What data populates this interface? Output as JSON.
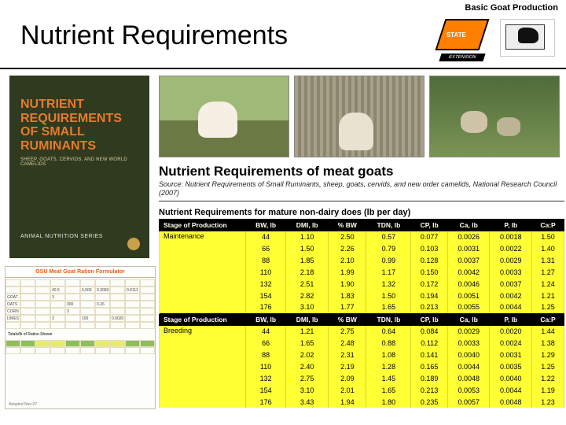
{
  "header": {
    "topic": "Basic Goat Production",
    "title": "Nutrient Requirements",
    "logo_state": "STATE",
    "logo_ext": "EXTENSION"
  },
  "book": {
    "line1": "NUTRIENT",
    "line2": "REQUIREMENTS",
    "line3": "OF SMALL",
    "line4": "RUMINANTS",
    "sub": "SHEEP, GOATS, CERVIDS, AND NEW WORLD CAMELIDS",
    "series": "ANIMAL NUTRITION SERIES"
  },
  "spreadsheet": {
    "title": "OSU Meat Goat Ration Formulator",
    "rows": [
      [
        "",
        "",
        "",
        "40.5",
        "",
        "6,000",
        "0.3093",
        "",
        "0.0111",
        ""
      ],
      [
        "GOAT PELLETS",
        "",
        "",
        "3",
        "",
        "",
        "",
        "",
        "",
        ""
      ],
      [
        "OATS GRAIN WILD",
        "",
        "",
        "",
        "300",
        "",
        "0.26",
        "",
        "",
        ""
      ],
      [
        "CORN",
        "",
        "",
        "",
        "3",
        "",
        "",
        "",
        "",
        ""
      ],
      [
        "LIMESTONE APL",
        "",
        "",
        "3",
        "",
        "100",
        "",
        "0.0020",
        "",
        ""
      ],
      [
        "",
        "",
        "",
        "",
        "",
        "",
        "",
        "",
        "",
        ""
      ]
    ],
    "summary_label": "Totals/lb of Ration Shown",
    "footer": "Adapted    Nov-07"
  },
  "table": {
    "title": "Nutrient Requirements of meat goats",
    "source": "Source:  Nutrient Requirements of Small Ruminants, sheep, goats, cervids, and new order camelids, National Research Council (2007)",
    "caption": "Nutrient Requirements for mature non-dairy does (lb per day)",
    "columns": [
      "Stage of Production",
      "BW, lb",
      "DMI, lb",
      "% BW",
      "TDN, lb",
      "CP, lb",
      "Ca, lb",
      "P, lb",
      "Ca:P"
    ],
    "sections": [
      {
        "stage": "Maintenance",
        "rows": [
          [
            "44",
            "1.10",
            "2.50",
            "0.57",
            "0.077",
            "0.0026",
            "0.0018",
            "1.50"
          ],
          [
            "66",
            "1.50",
            "2.26",
            "0.79",
            "0.103",
            "0.0031",
            "0.0022",
            "1.40"
          ],
          [
            "88",
            "1.85",
            "2.10",
            "0.99",
            "0.128",
            "0.0037",
            "0.0029",
            "1.31"
          ],
          [
            "110",
            "2.18",
            "1.99",
            "1.17",
            "0.150",
            "0.0042",
            "0.0033",
            "1.27"
          ],
          [
            "132",
            "2.51",
            "1.90",
            "1.32",
            "0.172",
            "0.0046",
            "0.0037",
            "1.24"
          ],
          [
            "154",
            "2.82",
            "1.83",
            "1.50",
            "0.194",
            "0.0051",
            "0.0042",
            "1.21"
          ],
          [
            "176",
            "3.10",
            "1.77",
            "1.65",
            "0.213",
            "0.0055",
            "0.0044",
            "1.25"
          ]
        ]
      },
      {
        "stage": "Breeding",
        "rows": [
          [
            "44",
            "1.21",
            "2.75",
            "0.64",
            "0.084",
            "0.0029",
            "0.0020",
            "1.44"
          ],
          [
            "66",
            "1.65",
            "2.48",
            "0.88",
            "0.112",
            "0.0033",
            "0.0024",
            "1.38"
          ],
          [
            "88",
            "2.02",
            "2.31",
            "1.08",
            "0.141",
            "0.0040",
            "0.0031",
            "1.29"
          ],
          [
            "110",
            "2.40",
            "2.19",
            "1.28",
            "0.165",
            "0.0044",
            "0.0035",
            "1.25"
          ],
          [
            "132",
            "2.75",
            "2.09",
            "1.45",
            "0.189",
            "0.0048",
            "0.0040",
            "1.22"
          ],
          [
            "154",
            "3.10",
            "2.01",
            "1.65",
            "0.213",
            "0.0053",
            "0.0044",
            "1.19"
          ],
          [
            "176",
            "3.43",
            "1.94",
            "1.80",
            "0.235",
            "0.0057",
            "0.0048",
            "1.23"
          ]
        ]
      }
    ]
  }
}
